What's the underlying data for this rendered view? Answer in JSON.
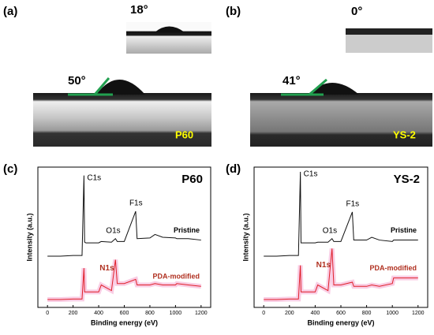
{
  "panels": {
    "a": {
      "label": "(a)",
      "angle_small": "18°",
      "angle_large": "50°",
      "sample": "P60"
    },
    "b": {
      "label": "(b)",
      "angle_small": "0°",
      "angle_large": "41°",
      "sample": "YS-2"
    },
    "c": {
      "label": "(c)"
    },
    "d": {
      "label": "(d)"
    }
  },
  "chart_data": [
    {
      "type": "line",
      "title": "P60",
      "xlabel": "Binding energy (eV)",
      "ylabel": "Intensity (a.u.)",
      "xlim": [
        -75,
        1275
      ],
      "xticks": [
        0,
        200,
        400,
        600,
        800,
        1000,
        1200
      ],
      "ylim": [
        0,
        100
      ],
      "annotations": [
        "C1s",
        "O1s",
        "F1s",
        "N1s"
      ],
      "x": [
        0,
        100,
        200,
        270,
        285,
        290,
        300,
        400,
        420,
        500,
        531,
        545,
        600,
        689,
        700,
        800,
        840,
        900,
        1000,
        1010,
        1100,
        1200
      ],
      "series": [
        {
          "name": "Pristine",
          "color": "#111111",
          "values": [
            36.5,
            36.5,
            37,
            37,
            94,
            46.6,
            46,
            46,
            47,
            46.5,
            49,
            47,
            47,
            68.5,
            49,
            49.5,
            52,
            50,
            49.5,
            49,
            49,
            48
          ]
        },
        {
          "name": "PDA-modified",
          "color": "#e0202a",
          "values": [
            5.6,
            5.6,
            6,
            6,
            28,
            11,
            11,
            11,
            16,
            12,
            34,
            17,
            17,
            20,
            16,
            16,
            17,
            16,
            16,
            17,
            16,
            15
          ]
        }
      ]
    },
    {
      "type": "line",
      "title": "YS-2",
      "xlabel": "Binding energy (eV)",
      "ylabel": "Intensity (a.u.)",
      "xlim": [
        -75,
        1275
      ],
      "xticks": [
        0,
        200,
        400,
        600,
        800,
        1000,
        1200
      ],
      "ylim": [
        0,
        100
      ],
      "annotations": [
        "C1s",
        "O1s",
        "F1s",
        "N1s"
      ],
      "x": [
        0,
        100,
        200,
        270,
        285,
        290,
        300,
        400,
        420,
        500,
        531,
        545,
        600,
        689,
        700,
        800,
        840,
        900,
        1000,
        1010,
        1100,
        1200
      ],
      "series": [
        {
          "name": "Pristine",
          "color": "#111111",
          "values": [
            36.5,
            36.5,
            37,
            37,
            96.6,
            46,
            46,
            46,
            46.5,
            46.5,
            49,
            47,
            47,
            68,
            48,
            48,
            50,
            48,
            47,
            48,
            48,
            48
          ]
        },
        {
          "name": "PDA-modified",
          "color": "#e0202a",
          "values": [
            5.6,
            5.6,
            6,
            6,
            30,
            11,
            11,
            11,
            16,
            12,
            42,
            16,
            16,
            18,
            15,
            15,
            16,
            15,
            17,
            21,
            21,
            21
          ]
        }
      ]
    }
  ]
}
